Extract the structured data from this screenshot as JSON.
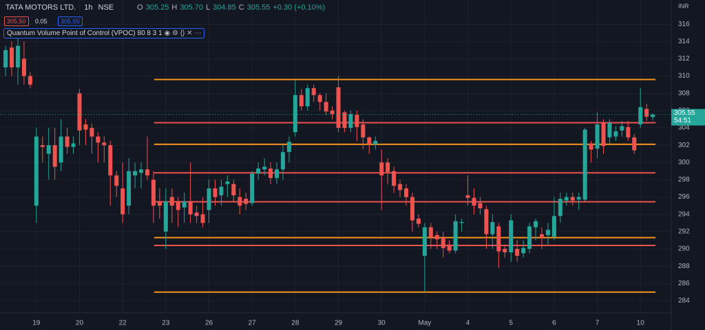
{
  "chart_data": {
    "type": "candlestick",
    "title": "TATA MOTORS LTD.",
    "interval": "1h",
    "exchange": "NSE",
    "ohlc_header": {
      "o_label": "O",
      "o": "305.25",
      "h_label": "H",
      "h": "305.70",
      "l_label": "L",
      "l": "304.85",
      "c_label": "C",
      "c": "305.55",
      "change": "+0.30 (+0.10%)"
    },
    "bid": "305.50",
    "spread": "0.05",
    "ask": "305.55",
    "indicator": {
      "name": "Quantum Volume Point of Control (VPOC)",
      "params": "80 8 3 1"
    },
    "currency": "INR",
    "last_price_label": "305.55",
    "countdown": "54:51",
    "up_color": "#26a69a",
    "down_color": "#ef5350",
    "xlim": [
      -0.9,
      108
    ],
    "ylim": [
      282.6,
      318.8
    ],
    "yticks": [
      284,
      286,
      288,
      290,
      292,
      294,
      296,
      298,
      300,
      302,
      304,
      306,
      308,
      310,
      312,
      314,
      316
    ],
    "xticks": [
      {
        "value": 5,
        "label": "19"
      },
      {
        "value": 12,
        "label": "20"
      },
      {
        "value": 19,
        "label": "22"
      },
      {
        "value": 26,
        "label": "23"
      },
      {
        "value": 33,
        "label": "26"
      },
      {
        "value": 40,
        "label": "27"
      },
      {
        "value": 47,
        "label": "28"
      },
      {
        "value": 54,
        "label": "29"
      },
      {
        "value": 61,
        "label": "30"
      },
      {
        "value": 68,
        "label": "May"
      },
      {
        "value": 75,
        "label": "4"
      },
      {
        "value": 82,
        "label": "5"
      },
      {
        "value": 89,
        "label": "6"
      },
      {
        "value": 96,
        "label": "7"
      },
      {
        "value": 103,
        "label": "10"
      }
    ],
    "levels": [
      {
        "value": 309.6,
        "color": "#f7931a"
      },
      {
        "value": 304.6,
        "color": "#ef5350"
      },
      {
        "value": 302.1,
        "color": "#f7931a"
      },
      {
        "value": 298.8,
        "color": "#ef5350"
      },
      {
        "value": 295.45,
        "color": "#ef5350"
      },
      {
        "value": 291.3,
        "color": "#f7931a"
      },
      {
        "value": 290.4,
        "color": "#ef5350"
      },
      {
        "value": 285,
        "color": "#f7931a"
      }
    ],
    "candles": [
      {
        "open": 311,
        "high": 313.5,
        "low": 310,
        "close": 313
      },
      {
        "open": 313.3,
        "high": 314,
        "low": 310,
        "close": 311
      },
      {
        "open": 311,
        "high": 314.5,
        "low": 309,
        "close": 313.5
      },
      {
        "open": 312,
        "high": 314,
        "low": 309,
        "close": 310
      },
      {
        "open": 310,
        "high": 310.5,
        "low": 308.6,
        "close": 309
      },
      {
        "open": 295,
        "high": 304,
        "low": 293,
        "close": 303
      },
      {
        "open": 302,
        "high": 303,
        "low": 300,
        "close": 301.8
      },
      {
        "open": 301,
        "high": 304,
        "low": 298,
        "close": 302
      },
      {
        "open": 302,
        "high": 304,
        "low": 298,
        "close": 299.5
      },
      {
        "open": 300,
        "high": 305,
        "low": 299,
        "close": 303
      },
      {
        "open": 303,
        "high": 304,
        "low": 301,
        "close": 301.8
      },
      {
        "open": 301.8,
        "high": 303,
        "low": 301,
        "close": 302.2
      },
      {
        "open": 308,
        "high": 308.5,
        "low": 302,
        "close": 303.7
      },
      {
        "open": 304.4,
        "high": 305,
        "low": 302,
        "close": 303.8
      },
      {
        "open": 304,
        "high": 304.5,
        "low": 301,
        "close": 303
      },
      {
        "open": 303,
        "high": 303.5,
        "low": 300,
        "close": 302.3
      },
      {
        "open": 302.3,
        "high": 303,
        "low": 300,
        "close": 302
      },
      {
        "open": 302,
        "high": 302.5,
        "low": 295,
        "close": 298.5
      },
      {
        "open": 298.5,
        "high": 299,
        "low": 296,
        "close": 297.3
      },
      {
        "open": 297,
        "high": 300,
        "low": 293,
        "close": 294
      },
      {
        "open": 295,
        "high": 300.5,
        "low": 294,
        "close": 299
      },
      {
        "open": 298.5,
        "high": 300,
        "low": 297,
        "close": 299
      },
      {
        "open": 298.8,
        "high": 300,
        "low": 297,
        "close": 299.2
      },
      {
        "open": 299.2,
        "high": 303,
        "low": 298,
        "close": 298.5
      },
      {
        "open": 298,
        "high": 299,
        "low": 293,
        "close": 295
      },
      {
        "open": 295.5,
        "high": 297,
        "low": 293.5,
        "close": 295
      },
      {
        "open": 292,
        "high": 297,
        "low": 290,
        "close": 295.5
      },
      {
        "open": 296,
        "high": 297,
        "low": 293,
        "close": 295
      },
      {
        "open": 295.5,
        "high": 296,
        "low": 292.5,
        "close": 294.5
      },
      {
        "open": 294.8,
        "high": 296.5,
        "low": 293,
        "close": 295.5
      },
      {
        "open": 295.5,
        "high": 300,
        "low": 293,
        "close": 294
      },
      {
        "open": 294.2,
        "high": 295,
        "low": 293,
        "close": 293.8
      },
      {
        "open": 294,
        "high": 296,
        "low": 292.5,
        "close": 293
      },
      {
        "open": 294.5,
        "high": 298,
        "low": 293,
        "close": 297
      },
      {
        "open": 297,
        "high": 298,
        "low": 295,
        "close": 296
      },
      {
        "open": 296.2,
        "high": 298,
        "low": 295,
        "close": 297.2
      },
      {
        "open": 297.5,
        "high": 298.5,
        "low": 296,
        "close": 297.8
      },
      {
        "open": 297.5,
        "high": 298,
        "low": 295.5,
        "close": 296.2
      },
      {
        "open": 296,
        "high": 297,
        "low": 294,
        "close": 295
      },
      {
        "open": 295.8,
        "high": 296.5,
        "low": 294.5,
        "close": 295.2
      },
      {
        "open": 295.3,
        "high": 299,
        "low": 295,
        "close": 298.7
      },
      {
        "open": 298.7,
        "high": 300,
        "low": 298,
        "close": 299.3
      },
      {
        "open": 299.2,
        "high": 300.5,
        "low": 298.5,
        "close": 299.5
      },
      {
        "open": 299.3,
        "high": 300,
        "low": 297.5,
        "close": 298.2
      },
      {
        "open": 298.2,
        "high": 300,
        "low": 297.5,
        "close": 299.2
      },
      {
        "open": 299.2,
        "high": 302,
        "low": 298,
        "close": 301.2
      },
      {
        "open": 301.2,
        "high": 303,
        "low": 300,
        "close": 302.4
      },
      {
        "open": 303.5,
        "high": 309.5,
        "low": 303,
        "close": 307.8
      },
      {
        "open": 307.8,
        "high": 308.5,
        "low": 306,
        "close": 306.5
      },
      {
        "open": 306.5,
        "high": 309,
        "low": 306,
        "close": 308.6
      },
      {
        "open": 308.6,
        "high": 309,
        "low": 307,
        "close": 307.8
      },
      {
        "open": 307.8,
        "high": 308,
        "low": 306,
        "close": 307
      },
      {
        "open": 307,
        "high": 308,
        "low": 305.5,
        "close": 305.9
      },
      {
        "open": 306,
        "high": 306.5,
        "low": 305,
        "close": 305.6
      },
      {
        "open": 308.7,
        "high": 310,
        "low": 303.5,
        "close": 304
      },
      {
        "open": 305.8,
        "high": 306,
        "low": 303.5,
        "close": 304
      },
      {
        "open": 304,
        "high": 306,
        "low": 303.5,
        "close": 305.6
      },
      {
        "open": 305.5,
        "high": 306,
        "low": 302.5,
        "close": 304.1
      },
      {
        "open": 304.4,
        "high": 305,
        "low": 301.5,
        "close": 302.9
      },
      {
        "open": 302.9,
        "high": 303,
        "low": 301,
        "close": 302.1
      },
      {
        "open": 302.1,
        "high": 303,
        "low": 301.5,
        "close": 302.5
      },
      {
        "open": 300,
        "high": 301.5,
        "low": 294.5,
        "close": 298.5
      },
      {
        "open": 300,
        "high": 300.5,
        "low": 297.5,
        "close": 298.9
      },
      {
        "open": 299,
        "high": 299.5,
        "low": 296.5,
        "close": 297.3
      },
      {
        "open": 297.5,
        "high": 298,
        "low": 296,
        "close": 296.8
      },
      {
        "open": 297,
        "high": 297.5,
        "low": 295,
        "close": 296
      },
      {
        "open": 296,
        "high": 296.5,
        "low": 292,
        "close": 293.3
      },
      {
        "open": 293.5,
        "high": 294,
        "low": 292.5,
        "close": 292.9
      },
      {
        "open": 289.2,
        "high": 293,
        "low": 285,
        "close": 292.5
      },
      {
        "open": 292.5,
        "high": 293,
        "low": 290,
        "close": 291.3
      },
      {
        "open": 291.6,
        "high": 292,
        "low": 290,
        "close": 291.1
      },
      {
        "open": 291.3,
        "high": 292,
        "low": 289,
        "close": 290.1
      },
      {
        "open": 290.5,
        "high": 291,
        "low": 289.5,
        "close": 289.8
      },
      {
        "open": 289.8,
        "high": 294,
        "low": 289.5,
        "close": 293.2
      },
      {
        "open": 293,
        "high": 293.5,
        "low": 292,
        "close": 293.1
      },
      {
        "open": 296.2,
        "high": 298.5,
        "low": 295,
        "close": 295.9
      },
      {
        "open": 295.9,
        "high": 297,
        "low": 294,
        "close": 295
      },
      {
        "open": 295.3,
        "high": 296,
        "low": 294,
        "close": 294.7
      },
      {
        "open": 294.6,
        "high": 295,
        "low": 290,
        "close": 291.7
      },
      {
        "open": 291.7,
        "high": 294,
        "low": 290,
        "close": 293.1
      },
      {
        "open": 292.6,
        "high": 293,
        "low": 287.8,
        "close": 289.7
      },
      {
        "open": 290,
        "high": 290.5,
        "low": 289,
        "close": 289.6
      },
      {
        "open": 289.6,
        "high": 294,
        "low": 288.5,
        "close": 293.3
      },
      {
        "open": 290,
        "high": 291,
        "low": 288.5,
        "close": 289.2
      },
      {
        "open": 289.5,
        "high": 291,
        "low": 289,
        "close": 290.1
      },
      {
        "open": 290,
        "high": 293,
        "low": 289.5,
        "close": 292.6
      },
      {
        "open": 292.5,
        "high": 293.5,
        "low": 291,
        "close": 293.2
      },
      {
        "open": 291.7,
        "high": 292.5,
        "low": 290,
        "close": 291.3
      },
      {
        "open": 291.6,
        "high": 293,
        "low": 290.5,
        "close": 292.2
      },
      {
        "open": 291.4,
        "high": 296,
        "low": 291,
        "close": 293.8
      },
      {
        "open": 293.8,
        "high": 296.5,
        "low": 293,
        "close": 295.8
      },
      {
        "open": 295.6,
        "high": 296.5,
        "low": 295,
        "close": 296
      },
      {
        "open": 296,
        "high": 296.5,
        "low": 295,
        "close": 295.6
      },
      {
        "open": 295.7,
        "high": 296.5,
        "low": 294.5,
        "close": 296
      },
      {
        "open": 295.7,
        "high": 304,
        "low": 295.5,
        "close": 303.8
      },
      {
        "open": 302.2,
        "high": 302.5,
        "low": 300,
        "close": 301.5
      },
      {
        "open": 301.6,
        "high": 305.8,
        "low": 300.5,
        "close": 304.4
      },
      {
        "open": 304.6,
        "high": 305,
        "low": 301,
        "close": 301.9
      },
      {
        "open": 302.9,
        "high": 305,
        "low": 302,
        "close": 304.6
      },
      {
        "open": 303,
        "high": 304.2,
        "low": 302.5,
        "close": 303.6
      },
      {
        "open": 303.7,
        "high": 304.8,
        "low": 303,
        "close": 304.2
      },
      {
        "open": 304.1,
        "high": 304.8,
        "low": 302.5,
        "close": 302.9
      },
      {
        "open": 302.9,
        "high": 303.3,
        "low": 301,
        "close": 301.4
      },
      {
        "open": 304.4,
        "high": 308.6,
        "low": 304,
        "close": 306.4
      },
      {
        "open": 306.2,
        "high": 306.8,
        "low": 304.8,
        "close": 305.3
      },
      {
        "open": 305.25,
        "high": 305.7,
        "low": 304.85,
        "close": 305.55
      }
    ]
  }
}
